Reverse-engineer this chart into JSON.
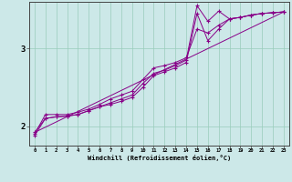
{
  "xlabel": "Windchill (Refroidissement éolien,°C)",
  "bg_color": "#cce8e8",
  "line_color": "#880088",
  "grid_color": "#99ccbb",
  "yticks": [
    2,
    3
  ],
  "xticks": [
    0,
    1,
    2,
    3,
    4,
    5,
    6,
    7,
    8,
    9,
    10,
    11,
    12,
    13,
    14,
    15,
    16,
    17,
    18,
    19,
    20,
    21,
    22,
    23
  ],
  "xlim": [
    -0.5,
    23.5
  ],
  "ylim": [
    1.75,
    3.6
  ],
  "line1_x": [
    0,
    1,
    2,
    3,
    4,
    5,
    6,
    7,
    8,
    9,
    10,
    11,
    12,
    13,
    14,
    15,
    16,
    17,
    18,
    19,
    20,
    21,
    22,
    23
  ],
  "line1_y": [
    1.9,
    2.15,
    2.15,
    2.15,
    2.18,
    2.22,
    2.28,
    2.35,
    2.4,
    2.45,
    2.6,
    2.75,
    2.78,
    2.82,
    2.88,
    3.25,
    3.2,
    3.3,
    3.38,
    3.4,
    3.43,
    3.45,
    3.46,
    3.47
  ],
  "line2_x": [
    0,
    1,
    2,
    3,
    4,
    5,
    6,
    7,
    8,
    9,
    10,
    11,
    12,
    13,
    14,
    15,
    16,
    17,
    18,
    19,
    20,
    21,
    22,
    23
  ],
  "line2_y": [
    1.92,
    2.1,
    2.12,
    2.13,
    2.15,
    2.2,
    2.25,
    2.3,
    2.35,
    2.4,
    2.55,
    2.68,
    2.72,
    2.78,
    2.85,
    3.55,
    3.35,
    3.48,
    3.38,
    3.4,
    3.43,
    3.45,
    3.46,
    3.47
  ],
  "line3_x": [
    0,
    1,
    2,
    3,
    4,
    5,
    6,
    7,
    8,
    9,
    10,
    11,
    12,
    13,
    14,
    15,
    16,
    17,
    18,
    19,
    20,
    21,
    22,
    23
  ],
  "line3_y": [
    1.88,
    2.1,
    2.12,
    2.13,
    2.15,
    2.2,
    2.25,
    2.28,
    2.32,
    2.37,
    2.5,
    2.65,
    2.7,
    2.75,
    2.82,
    3.45,
    3.1,
    3.25,
    3.38,
    3.4,
    3.43,
    3.45,
    3.46,
    3.47
  ],
  "line4_x": [
    0,
    23
  ],
  "line4_y": [
    1.92,
    3.47
  ]
}
